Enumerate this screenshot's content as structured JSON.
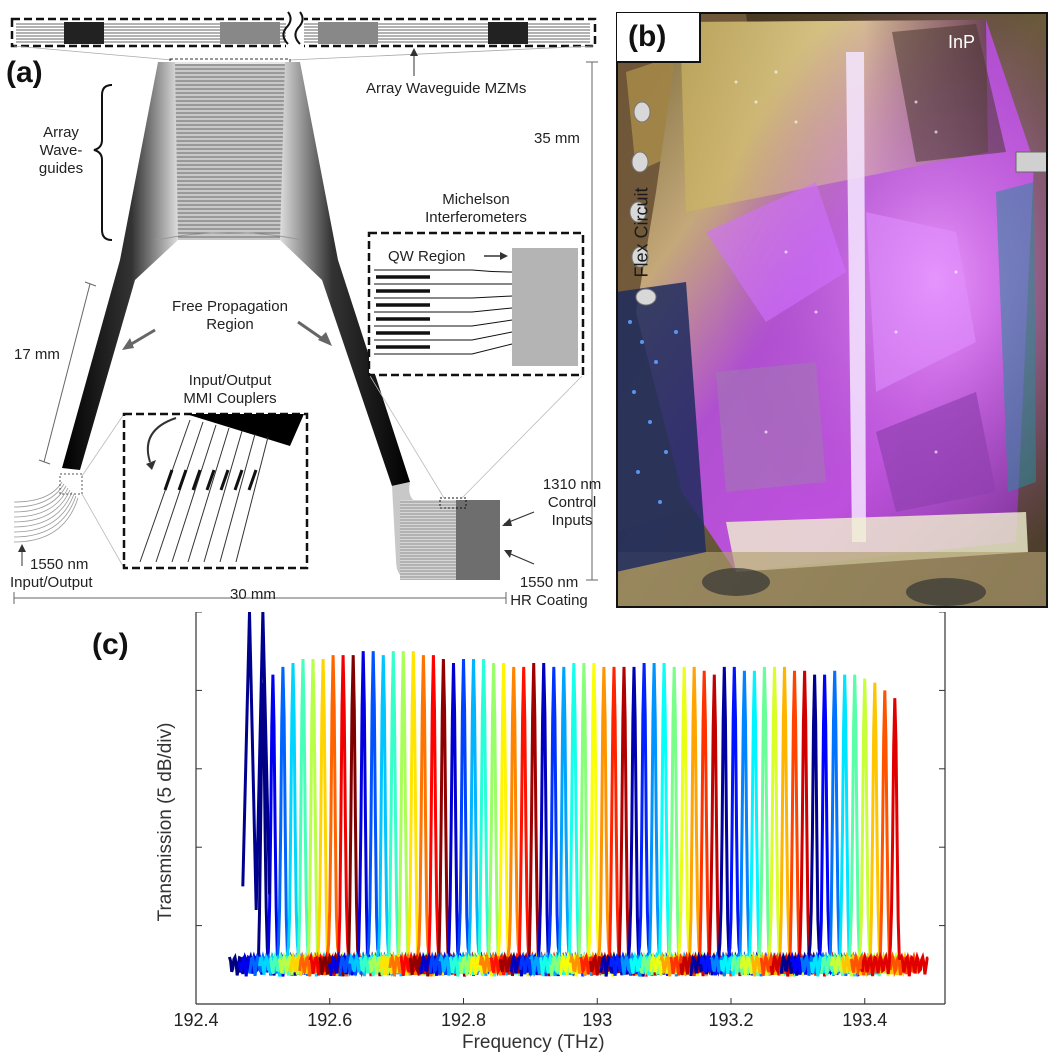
{
  "panel_a": {
    "letter": "(a)",
    "labels": {
      "array_waveguide_mzms": "Array Waveguide MZMs",
      "array_waveguides_line1": "Array",
      "array_waveguides_line2": "Wave-",
      "array_waveguides_line3": "guides",
      "length_35": "35 mm",
      "michelson_line1": "Michelson",
      "michelson_line2": "Interferometers",
      "qw_region": "QW Region",
      "free_prop_line1": "Free Propagation",
      "free_prop_line2": "Region",
      "length_17": "17 mm",
      "mmi_line1": "Input/Output",
      "mmi_line2": "MMI Couplers",
      "control_line1": "1310 nm",
      "control_line2": "Control",
      "control_line3": "Inputs",
      "io_line1": "1550 nm",
      "io_line2": "Input/Output",
      "hr_line1": "1550 nm",
      "hr_line2": "HR Coating",
      "length_30": "30 mm"
    }
  },
  "panel_b": {
    "letter": "(b)",
    "inp_label": "InP",
    "flex_label": "Flex Circuit"
  },
  "panel_c": {
    "letter": "(c)",
    "ylabel": "Transmission (5 dB/div)",
    "xlabel": "Frequency (THz)"
  },
  "chart_data": {
    "type": "line",
    "title": "",
    "xlabel": "Frequency (THz)",
    "ylabel": "Transmission (5 dB/div)",
    "xlim": [
      192.4,
      193.52
    ],
    "ylim": [
      0,
      25
    ],
    "x_ticks": [
      "192.4",
      "192.6",
      "192.8",
      "193",
      "193.2",
      "193.4"
    ],
    "y_ticks_unlabeled": 5,
    "channel_count": 64,
    "channel_start_thz": 192.5,
    "channel_spacing_thz": 0.015,
    "peak_level_div": [
      4.1,
      4.2,
      4.3,
      4.35,
      4.4,
      4.4,
      4.4,
      4.45,
      4.45,
      4.45,
      4.5,
      4.5,
      4.45,
      4.5,
      4.5,
      4.5,
      4.45,
      4.45,
      4.4,
      4.35,
      4.4,
      4.4,
      4.4,
      4.35,
      4.35,
      4.3,
      4.3,
      4.35,
      4.35,
      4.3,
      4.3,
      4.35,
      4.35,
      4.35,
      4.3,
      4.3,
      4.3,
      4.3,
      4.35,
      4.35,
      4.35,
      4.3,
      4.3,
      4.3,
      4.25,
      4.2,
      4.3,
      4.3,
      4.25,
      4.25,
      4.3,
      4.3,
      4.3,
      4.25,
      4.25,
      4.2,
      4.2,
      4.25,
      4.2,
      4.2,
      4.15,
      4.1,
      4.0,
      3.9
    ],
    "colors": [
      "#000080",
      "#0000ff",
      "#0080ff",
      "#00ffff",
      "#80ff80",
      "#ffff00",
      "#ff8000",
      "#ff0000",
      "#800000"
    ]
  }
}
